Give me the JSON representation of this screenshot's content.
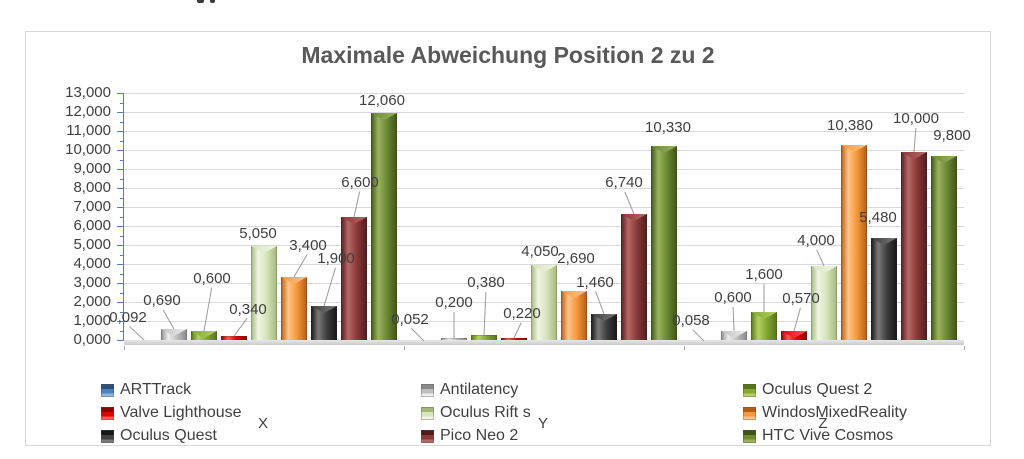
{
  "chart_data": {
    "type": "bar",
    "title": "Maximale Abweichung Position 2 zu 2",
    "categories": [
      "X",
      "Y",
      "Z"
    ],
    "y_axis": {
      "min": 0,
      "max": 13,
      "step": 1,
      "ticks": [
        "13,000",
        "12,000",
        "11,000",
        "10,000",
        "9,000",
        "8,000",
        "7,000",
        "6,000",
        "5,000",
        "4,000",
        "3,000",
        "2,000",
        "1,000",
        "0,000"
      ]
    },
    "grid": true,
    "legend_position": "bottom",
    "legend_columns": 3,
    "axis_color": "#4f7cbf",
    "gridline_color": "#d9d9d9",
    "series": [
      {
        "name": "ARTTrack",
        "color": "#4f81bd",
        "light": "#93b5dc",
        "dark": "#2d4f79",
        "values": [
          0.092,
          0.052,
          0.058
        ],
        "labels": [
          "0,092",
          "0,052",
          "0,058"
        ]
      },
      {
        "name": "Antilatency",
        "color": "#bfbfbf",
        "light": "#efefef",
        "dark": "#8a8a8a",
        "values": [
          0.69,
          0.2,
          0.6
        ],
        "labels": [
          "0,690",
          "0,200",
          "0,600"
        ]
      },
      {
        "name": "Oculus Quest 2",
        "color": "#84a832",
        "light": "#b4d162",
        "dark": "#577517",
        "values": [
          0.6,
          0.38,
          1.6
        ],
        "labels": [
          "0,600",
          "0,380",
          "1,600"
        ]
      },
      {
        "name": "Valve Lighthouse",
        "color": "#e00000",
        "light": "#ff5a4d",
        "dark": "#8f0000",
        "values": [
          0.34,
          0.22,
          0.57
        ],
        "labels": [
          "0,340",
          "0,220",
          "0,570"
        ]
      },
      {
        "name": "Oculus Rift s",
        "color": "#d7e4bc",
        "light": "#f0f5e3",
        "dark": "#a3b97c",
        "values": [
          5.05,
          4.05,
          4.0
        ],
        "labels": [
          "5,050",
          "4,050",
          "4,000"
        ]
      },
      {
        "name": "WindosMixedReality",
        "color": "#f6993c",
        "light": "#ffc488",
        "dark": "#b65c14",
        "values": [
          3.4,
          2.69,
          10.38
        ],
        "labels": [
          "3,400",
          "2,690",
          "10,380"
        ]
      },
      {
        "name": "Oculus Quest",
        "color": "#3f3f3f",
        "light": "#7a7a7a",
        "dark": "#161616",
        "values": [
          1.9,
          1.46,
          5.48
        ],
        "labels": [
          "1,900",
          "1,460",
          "5,480"
        ]
      },
      {
        "name": "Pico Neo 2",
        "color": "#8b3a39",
        "light": "#b56a66",
        "dark": "#521c1c",
        "values": [
          6.6,
          6.74,
          10.0
        ],
        "labels": [
          "6,600",
          "6,740",
          "10,000"
        ]
      },
      {
        "name": "HTC Vive Cosmos",
        "color": "#6d8a33",
        "light": "#9ab35e",
        "dark": "#3f5517",
        "values": [
          12.06,
          10.33,
          9.8
        ],
        "labels": [
          "12,060",
          "10,330",
          "9,800"
        ]
      }
    ],
    "label_offsets": {
      "note": "per category, per series: [dx,dy,leader]",
      "X": [
        [
          -16,
          15,
          1
        ],
        [
          -12,
          21,
          1
        ],
        [
          8,
          45,
          1
        ],
        [
          14,
          19,
          1
        ],
        [
          -6,
          5,
          0
        ],
        [
          14,
          24,
          1
        ],
        [
          12,
          40,
          1
        ],
        [
          6,
          27,
          1
        ],
        [
          -2,
          5,
          0
        ]
      ],
      "Y": [
        [
          -14,
          14,
          1
        ],
        [
          0,
          28,
          1
        ],
        [
          2,
          45,
          1
        ],
        [
          8,
          17,
          1
        ],
        [
          -4,
          6,
          0
        ],
        [
          2,
          25,
          0
        ],
        [
          -9,
          24,
          1
        ],
        [
          -10,
          24,
          1
        ],
        [
          4,
          11,
          0
        ]
      ],
      "Z": [
        [
          -13,
          13,
          1
        ],
        [
          -1,
          26,
          1
        ],
        [
          0,
          30,
          1
        ],
        [
          7,
          25,
          1
        ],
        [
          -8,
          18,
          1
        ],
        [
          -4,
          12,
          0
        ],
        [
          -6,
          13,
          0
        ],
        [
          2,
          26,
          1
        ],
        [
          8,
          13,
          0
        ]
      ]
    }
  }
}
